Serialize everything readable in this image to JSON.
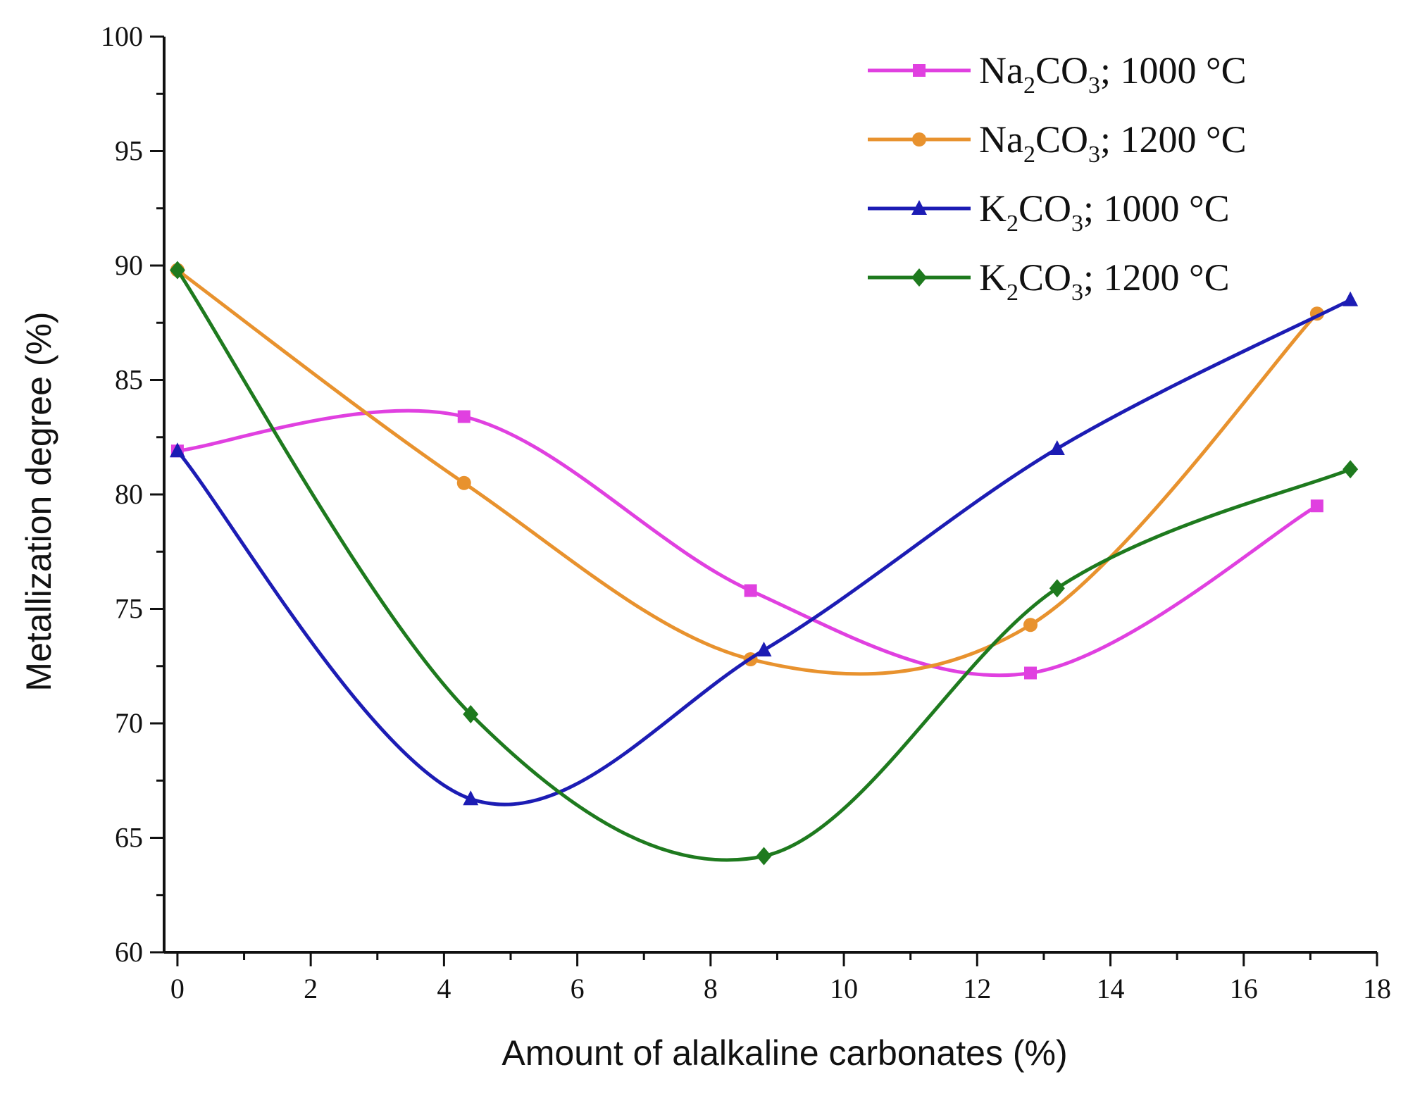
{
  "chart_data": {
    "type": "line",
    "title": "",
    "xlabel": "Amount of alalkaline carbonates (%)",
    "ylabel": "Metallization degree (%)",
    "xlim": [
      -0.2,
      18
    ],
    "ylim": [
      60,
      100
    ],
    "xticks": [
      0,
      2,
      4,
      6,
      8,
      10,
      12,
      14,
      16,
      18
    ],
    "yticks": [
      60,
      65,
      70,
      75,
      80,
      85,
      90,
      95,
      100
    ],
    "grid": false,
    "legend_position": "top-right",
    "series": [
      {
        "name": "Na2CO3; 1000 °C",
        "label_parts": [
          "Na",
          "2",
          "CO",
          "3",
          "; 1000 °C"
        ],
        "color": "#e040e0",
        "marker": "square",
        "x": [
          0,
          4.3,
          8.6,
          12.8,
          17.1
        ],
        "values": [
          81.9,
          83.4,
          75.8,
          72.2,
          79.5
        ]
      },
      {
        "name": "Na2CO3; 1200 °C",
        "label_parts": [
          "Na",
          "2",
          "CO",
          "3",
          "; 1200 °C"
        ],
        "color": "#e8922e",
        "marker": "circle",
        "x": [
          0,
          4.3,
          8.6,
          12.8,
          17.1
        ],
        "values": [
          89.8,
          80.5,
          72.8,
          74.3,
          87.9
        ]
      },
      {
        "name": "K2CO3; 1000 °C",
        "label_parts": [
          "K",
          "2",
          "CO",
          "3",
          "; 1000 °C"
        ],
        "color": "#1c1cb4",
        "marker": "triangle",
        "x": [
          0,
          4.4,
          8.8,
          13.2,
          17.6
        ],
        "values": [
          81.9,
          66.7,
          73.2,
          82.0,
          88.5
        ]
      },
      {
        "name": "K2CO3; 1200 °C",
        "label_parts": [
          "K",
          "2",
          "CO",
          "3",
          "; 1200 °C"
        ],
        "color": "#1e7a1e",
        "marker": "diamond",
        "x": [
          0,
          4.4,
          8.8,
          13.2,
          17.6
        ],
        "values": [
          89.8,
          70.4,
          64.2,
          75.9,
          81.1
        ]
      }
    ]
  }
}
